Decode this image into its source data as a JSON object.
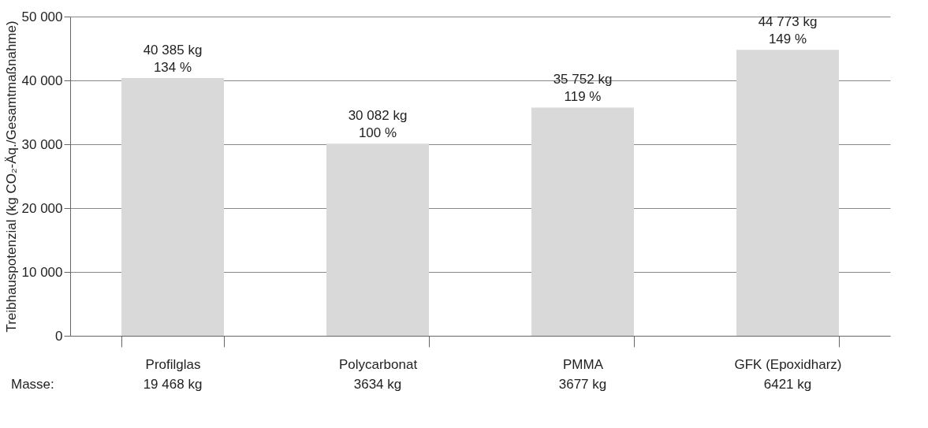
{
  "chart_data": {
    "type": "bar",
    "ylabel": "Treibhauspotenzial (kg CO₂-Äq./Gesamtmaßnahme)",
    "categories": [
      "Profilglas",
      "Polycarbonat",
      "PMMA",
      "GFK (Epoxidharz)"
    ],
    "values": [
      40385,
      30082,
      35752,
      44773
    ],
    "value_labels": [
      "40 385 kg\n134 %",
      "30 082 kg\n100 %",
      "35 752 kg\n119 %",
      "44 773 kg\n149 %"
    ],
    "color": "#d9d9d9",
    "ylim": [
      0,
      50000
    ],
    "yticks": [
      0,
      {
        "value": 10000,
        "label": "10 000"
      },
      {
        "value": 20000,
        "label": "20 000"
      },
      {
        "value": 30000,
        "label": "30 000"
      },
      {
        "value": 40000,
        "label": "40 000"
      },
      {
        "value": 50000,
        "label": "50 000"
      }
    ],
    "grid": "y",
    "annotations": [
      "Masse:",
      "19 468 kg",
      "3634 kg",
      "3677 kg",
      "6421 kg"
    ]
  }
}
